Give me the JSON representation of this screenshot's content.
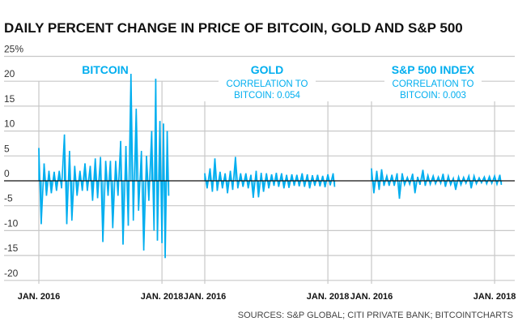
{
  "chart_data": {
    "type": "line",
    "title": "DAILY PERCENT CHANGE IN PRICE OF BITCOIN, GOLD AND S&P 500",
    "ylabel": "",
    "ylim": [
      -22,
      25
    ],
    "yticks": [
      25,
      20,
      15,
      10,
      5,
      0,
      -5,
      -10,
      -15,
      -20
    ],
    "ytick_labels": [
      "25%",
      "20",
      "15",
      "10",
      "5",
      "0",
      "-5",
      "-10",
      "-15",
      "-20"
    ],
    "grid": "horizontal",
    "line_color": "#00aeef",
    "source": "SOURCES: S&P GLOBAL; CITI PRIVATE BANK; BITCOINTCHARTS",
    "panels": [
      {
        "name": "BITCOIN",
        "annotation": [],
        "xtick_labels": [
          "JAN. 2016",
          "JAN. 2018"
        ],
        "xtick_dates": [
          "2016-01-01",
          "2018-01-01"
        ],
        "points": [
          [
            "2016-01-01",
            6.6
          ],
          [
            "2016-01-15",
            -8.7
          ],
          [
            "2016-02-01",
            3.5
          ],
          [
            "2016-02-15",
            -3
          ],
          [
            "2016-03-01",
            2
          ],
          [
            "2016-03-15",
            -2.5
          ],
          [
            "2016-04-01",
            1.8
          ],
          [
            "2016-04-15",
            -2
          ],
          [
            "2016-05-01",
            2
          ],
          [
            "2016-05-15",
            -1.5
          ],
          [
            "2016-06-01",
            9.3
          ],
          [
            "2016-06-15",
            -8.7
          ],
          [
            "2016-07-01",
            6
          ],
          [
            "2016-07-15",
            -8
          ],
          [
            "2016-08-01",
            3
          ],
          [
            "2016-08-15",
            -3
          ],
          [
            "2016-09-01",
            2
          ],
          [
            "2016-09-15",
            -2
          ],
          [
            "2016-10-01",
            3.5
          ],
          [
            "2016-10-15",
            -2
          ],
          [
            "2016-11-01",
            3
          ],
          [
            "2016-11-15",
            -4
          ],
          [
            "2016-12-01",
            4.5
          ],
          [
            "2016-12-15",
            -3.5
          ],
          [
            "2017-01-01",
            4.8
          ],
          [
            "2017-01-15",
            -12.3
          ],
          [
            "2017-02-01",
            4
          ],
          [
            "2017-02-15",
            -3
          ],
          [
            "2017-03-01",
            4
          ],
          [
            "2017-03-15",
            -9.5
          ],
          [
            "2017-04-01",
            4
          ],
          [
            "2017-04-15",
            -3
          ],
          [
            "2017-05-01",
            8
          ],
          [
            "2017-05-15",
            -12.8
          ],
          [
            "2017-06-01",
            7
          ],
          [
            "2017-06-15",
            -9
          ],
          [
            "2017-07-01",
            21.5
          ],
          [
            "2017-07-15",
            -8
          ],
          [
            "2017-08-01",
            14.5
          ],
          [
            "2017-08-15",
            -6
          ],
          [
            "2017-09-01",
            6
          ],
          [
            "2017-09-15",
            -14
          ],
          [
            "2017-10-01",
            5
          ],
          [
            "2017-10-15",
            -4
          ],
          [
            "2017-11-01",
            10
          ],
          [
            "2017-11-15",
            -10
          ],
          [
            "2017-11-25",
            20.5
          ],
          [
            "2017-12-05",
            -12
          ],
          [
            "2017-12-20",
            12
          ],
          [
            "2018-01-01",
            -12.5
          ],
          [
            "2018-01-10",
            11.5
          ],
          [
            "2018-01-20",
            -15.5
          ],
          [
            "2018-02-01",
            10
          ],
          [
            "2018-02-10",
            -3
          ]
        ]
      },
      {
        "name": "GOLD",
        "annotation": [
          "CORRELATION TO",
          "BITCOIN: 0.054"
        ],
        "xtick_labels": [
          "JAN. 2016",
          "JAN. 2018"
        ],
        "xtick_dates": [
          "2016-01-01",
          "2018-01-01"
        ],
        "points": [
          [
            "2016-01-01",
            1.5
          ],
          [
            "2016-01-15",
            -1.5
          ],
          [
            "2016-02-01",
            2.5
          ],
          [
            "2016-02-15",
            -2.2
          ],
          [
            "2016-03-01",
            4.5
          ],
          [
            "2016-03-15",
            -2
          ],
          [
            "2016-04-01",
            1.8
          ],
          [
            "2016-04-15",
            -1.5
          ],
          [
            "2016-05-01",
            1.5
          ],
          [
            "2016-05-15",
            -2.5
          ],
          [
            "2016-06-01",
            2
          ],
          [
            "2016-06-15",
            -1.8
          ],
          [
            "2016-07-01",
            4.8
          ],
          [
            "2016-07-15",
            -1.5
          ],
          [
            "2016-08-01",
            1.5
          ],
          [
            "2016-08-15",
            -1.2
          ],
          [
            "2016-09-01",
            1.5
          ],
          [
            "2016-09-15",
            -1.5
          ],
          [
            "2016-10-01",
            1.2
          ],
          [
            "2016-10-15",
            -3.4
          ],
          [
            "2016-11-01",
            2
          ],
          [
            "2016-11-15",
            -3.3
          ],
          [
            "2016-12-01",
            1.6
          ],
          [
            "2016-12-15",
            -2.2
          ],
          [
            "2017-01-01",
            1.5
          ],
          [
            "2017-01-15",
            -1.5
          ],
          [
            "2017-02-01",
            1.3
          ],
          [
            "2017-02-15",
            -1
          ],
          [
            "2017-03-01",
            1.6
          ],
          [
            "2017-03-15",
            -1.2
          ],
          [
            "2017-04-01",
            1.5
          ],
          [
            "2017-04-15",
            -1.5
          ],
          [
            "2017-05-01",
            1.2
          ],
          [
            "2017-05-15",
            -1.4
          ],
          [
            "2017-06-01",
            1.3
          ],
          [
            "2017-06-15",
            -1
          ],
          [
            "2017-07-01",
            1.2
          ],
          [
            "2017-07-15",
            -1.1
          ],
          [
            "2017-08-01",
            1.5
          ],
          [
            "2017-08-15",
            -1.2
          ],
          [
            "2017-09-01",
            1.3
          ],
          [
            "2017-09-15",
            -1.5
          ],
          [
            "2017-10-01",
            1.1
          ],
          [
            "2017-10-15",
            -1
          ],
          [
            "2017-11-01",
            1.2
          ],
          [
            "2017-11-15",
            -1.1
          ],
          [
            "2017-12-01",
            1
          ],
          [
            "2017-12-15",
            -1.3
          ],
          [
            "2018-01-01",
            1.3
          ],
          [
            "2018-01-15",
            -0.9
          ],
          [
            "2018-02-01",
            1.5
          ],
          [
            "2018-02-10",
            -1.2
          ]
        ]
      },
      {
        "name": "S&P 500 INDEX",
        "annotation": [
          "CORRELATION TO",
          "BITCOIN: 0.003"
        ],
        "xtick_labels": [
          "JAN. 2016",
          "JAN. 2018"
        ],
        "xtick_dates": [
          "2016-01-01",
          "2018-01-01"
        ],
        "points": [
          [
            "2016-01-01",
            2.5
          ],
          [
            "2016-01-15",
            -2.5
          ],
          [
            "2016-02-01",
            2
          ],
          [
            "2016-02-15",
            -1.8
          ],
          [
            "2016-03-01",
            2.3
          ],
          [
            "2016-03-15",
            -1
          ],
          [
            "2016-04-01",
            1
          ],
          [
            "2016-04-15",
            -1
          ],
          [
            "2016-05-01",
            1.2
          ],
          [
            "2016-05-15",
            -1
          ],
          [
            "2016-06-01",
            1.5
          ],
          [
            "2016-06-15",
            -3.6
          ],
          [
            "2016-07-01",
            1.5
          ],
          [
            "2016-07-15",
            -0.8
          ],
          [
            "2016-08-01",
            0.7
          ],
          [
            "2016-08-15",
            -0.7
          ],
          [
            "2016-09-01",
            1.4
          ],
          [
            "2016-09-15",
            -2.5
          ],
          [
            "2016-10-01",
            0.8
          ],
          [
            "2016-10-15",
            -0.8
          ],
          [
            "2016-11-01",
            2.2
          ],
          [
            "2016-11-15",
            -1
          ],
          [
            "2016-12-01",
            1.1
          ],
          [
            "2016-12-15",
            -0.7
          ],
          [
            "2017-01-01",
            1
          ],
          [
            "2017-01-15",
            -0.6
          ],
          [
            "2017-02-01",
            0.8
          ],
          [
            "2017-02-15",
            -0.5
          ],
          [
            "2017-03-01",
            1.4
          ],
          [
            "2017-03-15",
            -1.2
          ],
          [
            "2017-04-01",
            1
          ],
          [
            "2017-04-15",
            -0.8
          ],
          [
            "2017-05-01",
            0.5
          ],
          [
            "2017-05-15",
            -1.8
          ],
          [
            "2017-06-01",
            0.8
          ],
          [
            "2017-06-15",
            -0.8
          ],
          [
            "2017-07-01",
            0.7
          ],
          [
            "2017-07-15",
            -0.5
          ],
          [
            "2017-08-01",
            1
          ],
          [
            "2017-08-15",
            -1.5
          ],
          [
            "2017-09-01",
            1
          ],
          [
            "2017-09-15",
            -0.6
          ],
          [
            "2017-10-01",
            0.6
          ],
          [
            "2017-10-15",
            -0.4
          ],
          [
            "2017-11-01",
            0.8
          ],
          [
            "2017-11-15",
            -0.6
          ],
          [
            "2017-12-01",
            0.9
          ],
          [
            "2017-12-15",
            -0.5
          ],
          [
            "2018-01-01",
            1
          ],
          [
            "2018-01-15",
            -0.7
          ],
          [
            "2018-02-01",
            1.2
          ],
          [
            "2018-02-10",
            -0.8
          ]
        ]
      }
    ]
  }
}
